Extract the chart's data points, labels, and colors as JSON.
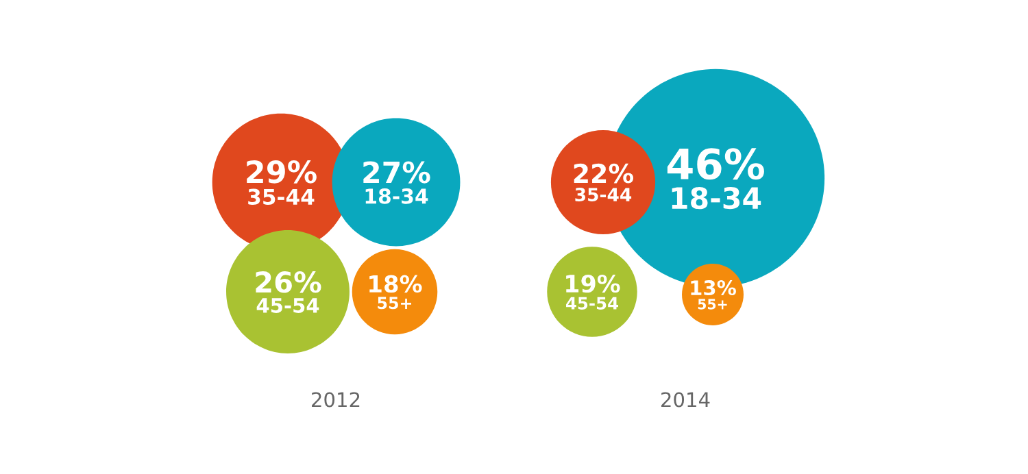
{
  "chart_data": [
    {
      "type": "other",
      "title": "2012",
      "categories": [
        "35-44",
        "18-34",
        "45-54",
        "55+"
      ],
      "values": [
        29,
        27,
        26,
        18
      ],
      "value_labels": [
        "29%",
        "27%",
        "26%",
        "18%"
      ],
      "colors": [
        "#e0481e",
        "#0aa8be",
        "#a9c232",
        "#f48b0c"
      ]
    },
    {
      "type": "other",
      "title": "2014",
      "categories": [
        "35-44",
        "18-34",
        "45-54",
        "55+"
      ],
      "values": [
        22,
        46,
        19,
        13
      ],
      "value_labels": [
        "22%",
        "46%",
        "19%",
        "13%"
      ],
      "colors": [
        "#e0481e",
        "#0aa8be",
        "#a9c232",
        "#f48b0c"
      ]
    }
  ]
}
